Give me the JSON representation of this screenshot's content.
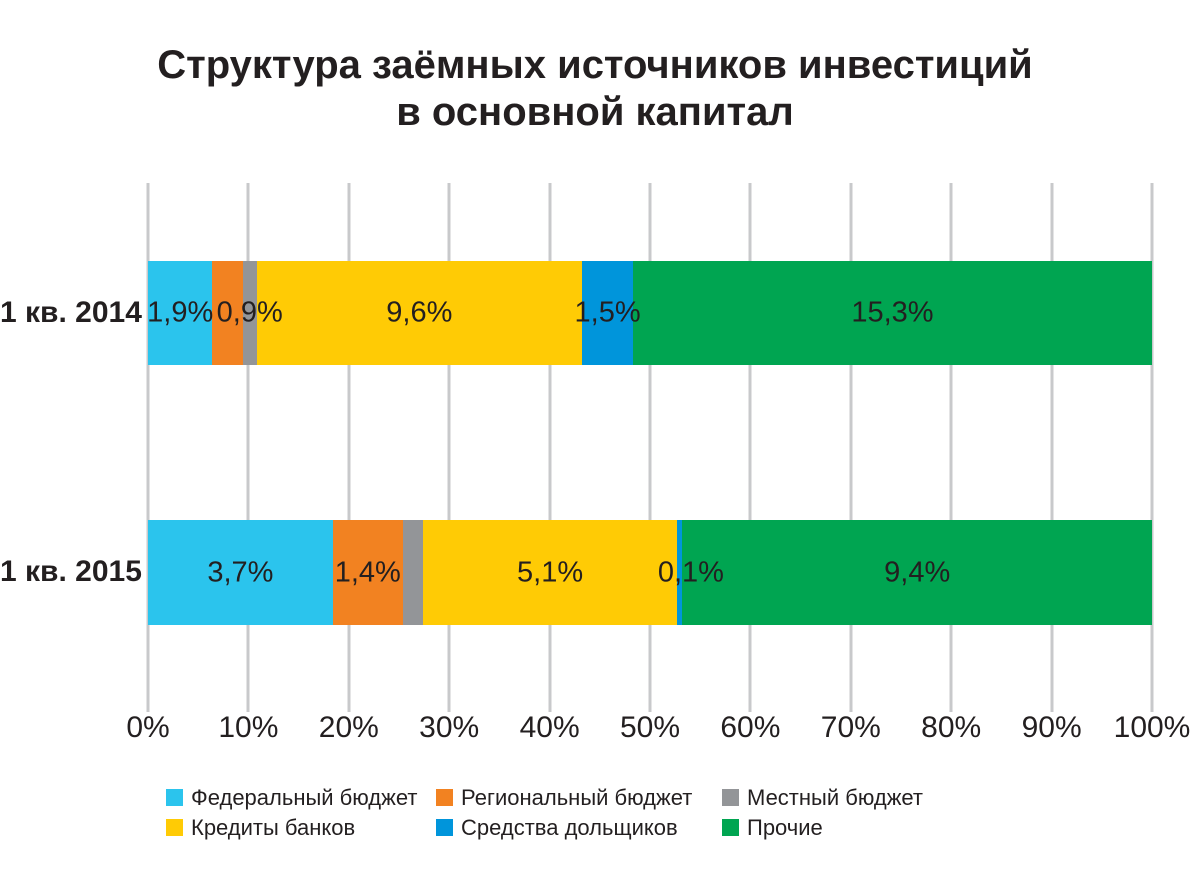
{
  "title": {
    "line1": "Структура заёмных источников инвестиций",
    "line2": "в основной капитал"
  },
  "chart_data": {
    "type": "bar",
    "variant": "stacked-horizontal-100pct",
    "title": "Структура заёмных источников инвестиций в основной капитал",
    "categories": [
      "1 кв. 2014",
      "1 кв. 2015"
    ],
    "series": [
      {
        "name": "Федеральный бюджет",
        "color": "#2bc4ed",
        "values": [
          1.9,
          3.7
        ],
        "labels": [
          "1,9%",
          "3,7%"
        ]
      },
      {
        "name": "Региональный бюджет",
        "color": "#f28221",
        "values": [
          0.9,
          1.4
        ],
        "labels": [
          "0,9%",
          "1,4%"
        ]
      },
      {
        "name": "Местный бюджет",
        "color": "#939598",
        "values": [
          0.4,
          0.4
        ],
        "labels": [
          "",
          ""
        ]
      },
      {
        "name": "Кредиты банков",
        "color": "#ffcb05",
        "values": [
          9.6,
          5.1
        ],
        "labels": [
          "9,6%",
          "5,1%"
        ]
      },
      {
        "name": "Средства дольщиков",
        "color": "#0095db",
        "values": [
          1.5,
          0.1
        ],
        "labels": [
          "1,5%",
          "0,1%"
        ]
      },
      {
        "name": "Прочие",
        "color": "#00a551",
        "values": [
          15.3,
          9.4
        ],
        "labels": [
          "15,3%",
          "9,4%"
        ]
      }
    ],
    "x_axis": {
      "tick_labels": [
        "0%",
        "10%",
        "20%",
        "30%",
        "40%",
        "50%",
        "60%",
        "70%",
        "80%",
        "90%",
        "100%"
      ],
      "min": 0,
      "max": 100,
      "gridlines": true
    },
    "legend": {
      "position": "bottom",
      "rows": 2,
      "columns": 3
    },
    "label_dx": [
      [
        0,
        22,
        0,
        0,
        0,
        0
      ],
      [
        0,
        0,
        0,
        0,
        11,
        0
      ]
    ]
  }
}
